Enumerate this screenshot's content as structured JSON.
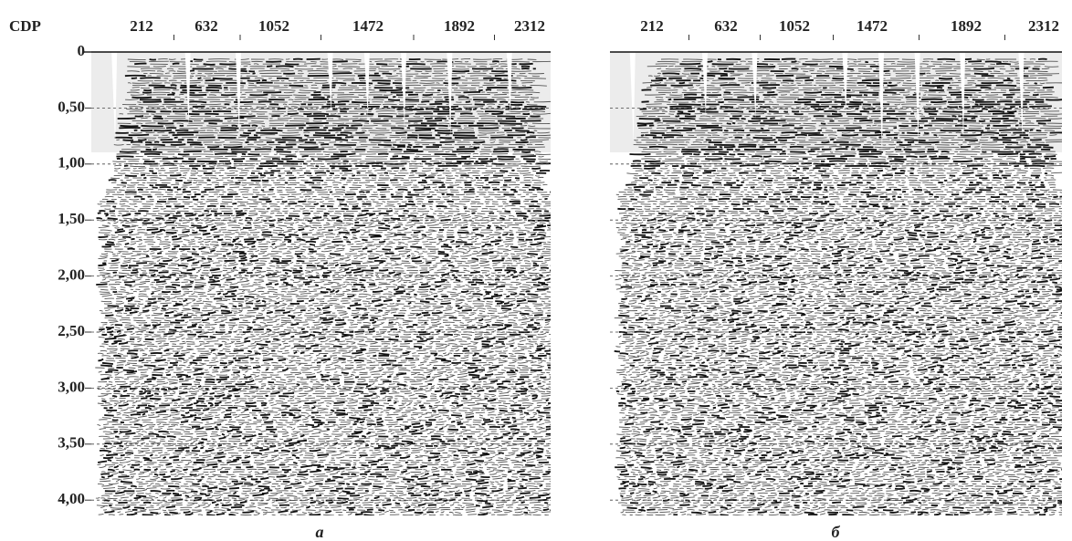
{
  "y_axis": {
    "title": "CDP",
    "labels": [
      "0",
      "0,50",
      "1,00",
      "1,50",
      "2,00",
      "2,50",
      "3,00",
      "3,50",
      "4,00"
    ]
  },
  "panels": [
    {
      "x_labels": [
        "212",
        "632",
        "1052",
        "1472",
        "1892",
        "2312"
      ],
      "caption": "а"
    },
    {
      "x_labels": [
        "212",
        "632",
        "1052",
        "1472",
        "1892",
        "2312"
      ],
      "caption": "б"
    }
  ]
}
